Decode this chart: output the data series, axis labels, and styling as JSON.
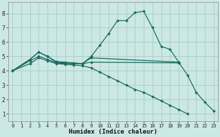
{
  "xlabel": "Humidex (Indice chaleur)",
  "bg_color": "#cce8e4",
  "grid_color": "#aacfcb",
  "line_color": "#1a6b60",
  "xlim": [
    -0.5,
    23.5
  ],
  "ylim": [
    0.5,
    8.8
  ],
  "xticks": [
    0,
    1,
    2,
    3,
    4,
    5,
    6,
    7,
    8,
    9,
    10,
    11,
    12,
    13,
    14,
    15,
    16,
    17,
    18,
    19,
    20,
    21,
    22,
    23
  ],
  "yticks": [
    1,
    2,
    3,
    4,
    5,
    6,
    7,
    8
  ],
  "lines": [
    {
      "x": [
        0,
        2,
        3,
        4,
        5,
        6,
        7,
        8,
        9,
        10,
        11,
        12,
        13,
        14,
        15,
        16,
        17,
        18,
        19,
        20,
        21,
        22,
        23
      ],
      "y": [
        4.0,
        4.8,
        5.3,
        5.0,
        4.6,
        4.55,
        4.5,
        4.5,
        5.0,
        5.8,
        6.6,
        7.5,
        7.5,
        8.05,
        8.15,
        7.0,
        5.7,
        5.5,
        4.6,
        3.7,
        2.5,
        1.8,
        1.2
      ]
    },
    {
      "x": [
        0,
        2,
        3,
        4,
        5,
        6,
        7,
        8,
        9,
        19
      ],
      "y": [
        4.0,
        4.8,
        5.3,
        5.0,
        4.65,
        4.6,
        4.55,
        4.5,
        4.9,
        4.6
      ]
    },
    {
      "x": [
        0,
        2,
        3,
        4,
        5,
        6,
        7,
        8,
        9,
        19
      ],
      "y": [
        4.0,
        4.7,
        5.0,
        4.8,
        4.55,
        4.5,
        4.5,
        4.5,
        4.6,
        4.55
      ]
    },
    {
      "x": [
        0,
        2,
        3,
        4,
        5,
        6,
        7,
        8,
        9,
        10,
        11,
        12,
        13,
        14,
        15,
        16,
        17,
        18,
        19,
        20
      ],
      "y": [
        4.0,
        4.5,
        4.9,
        4.7,
        4.5,
        4.45,
        4.4,
        4.35,
        4.2,
        3.9,
        3.6,
        3.3,
        3.0,
        2.7,
        2.5,
        2.2,
        1.9,
        1.6,
        1.3,
        1.0
      ]
    }
  ]
}
